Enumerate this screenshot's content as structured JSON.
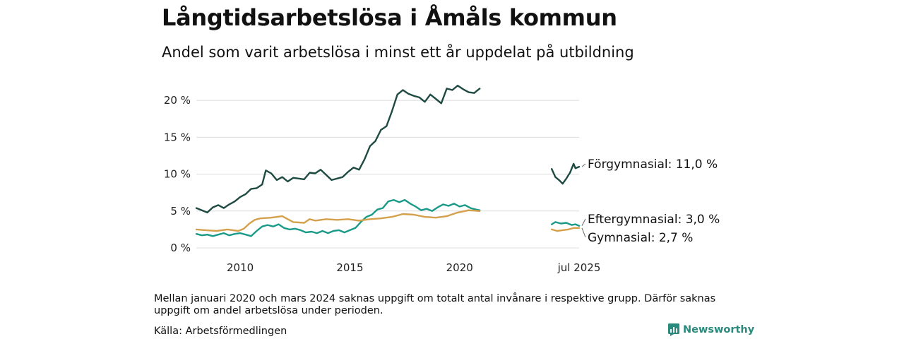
{
  "title": "Långtidsarbetslösa i Åmåls kommun",
  "subtitle": "Andel som varit arbetslösa i minst ett år uppdelat på utbildning",
  "footnote": "Mellan januari 2020 och mars 2024 saknas uppgift om totalt antal invånare i respektive grupp. Därför saknas uppgift om andel arbetslösa under perioden.",
  "source": "Källa: Arbetsförmedlingen",
  "brand": "Newsworthy",
  "colors": {
    "forgymnasial": "#1e4a42",
    "eftergymnasial": "#1a9a88",
    "gymnasial": "#d4a04c",
    "grid": "#dcdcdc"
  },
  "chart_data": {
    "type": "line",
    "ylim": [
      0,
      22.5
    ],
    "ytick_values": [
      0,
      5,
      10,
      15,
      20
    ],
    "yticks": [
      "0 %",
      "5 %",
      "10 %",
      "15 %",
      "20 %"
    ],
    "xticks": [
      {
        "label": "2010",
        "value": "2010-01"
      },
      {
        "label": "2015",
        "value": "2015-01"
      },
      {
        "label": "2020",
        "value": "2020-01"
      },
      {
        "label": "jul 2025",
        "value": "2025-07"
      }
    ],
    "segments": [
      {
        "from": "2008-01",
        "to": "2020-12"
      },
      {
        "from": "2024-04",
        "to": "2025-07"
      }
    ],
    "series": [
      {
        "key": "forgymnasial",
        "label": "Förgymnasial: 11,0 %",
        "points": [
          [
            "2008-01",
            5.4
          ],
          [
            "2008-04",
            5.1
          ],
          [
            "2008-07",
            4.8
          ],
          [
            "2008-10",
            5.5
          ],
          [
            "2009-01",
            5.8
          ],
          [
            "2009-04",
            5.4
          ],
          [
            "2009-07",
            5.9
          ],
          [
            "2009-10",
            6.3
          ],
          [
            "2010-01",
            6.9
          ],
          [
            "2010-04",
            7.3
          ],
          [
            "2010-07",
            8.0
          ],
          [
            "2010-10",
            8.1
          ],
          [
            "2011-01",
            8.6
          ],
          [
            "2011-03",
            10.5
          ],
          [
            "2011-06",
            10.1
          ],
          [
            "2011-09",
            9.2
          ],
          [
            "2011-12",
            9.6
          ],
          [
            "2012-03",
            9.0
          ],
          [
            "2012-06",
            9.5
          ],
          [
            "2012-09",
            9.4
          ],
          [
            "2012-12",
            9.3
          ],
          [
            "2013-03",
            10.2
          ],
          [
            "2013-06",
            10.1
          ],
          [
            "2013-09",
            10.6
          ],
          [
            "2013-12",
            9.9
          ],
          [
            "2014-03",
            9.2
          ],
          [
            "2014-06",
            9.4
          ],
          [
            "2014-09",
            9.6
          ],
          [
            "2014-12",
            10.3
          ],
          [
            "2015-03",
            10.9
          ],
          [
            "2015-06",
            10.6
          ],
          [
            "2015-09",
            12.0
          ],
          [
            "2015-12",
            13.8
          ],
          [
            "2016-03",
            14.5
          ],
          [
            "2016-06",
            16.0
          ],
          [
            "2016-09",
            16.5
          ],
          [
            "2016-12",
            18.5
          ],
          [
            "2017-03",
            20.8
          ],
          [
            "2017-06",
            21.4
          ],
          [
            "2017-09",
            20.9
          ],
          [
            "2017-12",
            20.6
          ],
          [
            "2018-03",
            20.4
          ],
          [
            "2018-06",
            19.8
          ],
          [
            "2018-09",
            20.8
          ],
          [
            "2018-12",
            20.2
          ],
          [
            "2019-03",
            19.6
          ],
          [
            "2019-06",
            21.6
          ],
          [
            "2019-09",
            21.4
          ],
          [
            "2019-12",
            22.0
          ],
          [
            "2020-03",
            21.5
          ],
          [
            "2020-06",
            21.1
          ],
          [
            "2020-09",
            21.0
          ],
          [
            "2020-12",
            21.6
          ],
          [
            "2024-04",
            10.7
          ],
          [
            "2024-06",
            9.6
          ],
          [
            "2024-08",
            9.2
          ],
          [
            "2024-10",
            8.7
          ],
          [
            "2024-12",
            9.4
          ],
          [
            "2025-02",
            10.2
          ],
          [
            "2025-04",
            11.4
          ],
          [
            "2025-05",
            10.8
          ],
          [
            "2025-07",
            11.0
          ]
        ]
      },
      {
        "key": "eftergymnasial",
        "label": "Eftergymnasial:  3,0 %",
        "points": [
          [
            "2008-01",
            1.9
          ],
          [
            "2008-04",
            1.7
          ],
          [
            "2008-07",
            1.8
          ],
          [
            "2008-10",
            1.6
          ],
          [
            "2009-01",
            1.8
          ],
          [
            "2009-04",
            2.0
          ],
          [
            "2009-07",
            1.7
          ],
          [
            "2009-10",
            1.9
          ],
          [
            "2010-01",
            2.0
          ],
          [
            "2010-04",
            1.8
          ],
          [
            "2010-07",
            1.6
          ],
          [
            "2010-10",
            2.3
          ],
          [
            "2011-01",
            2.9
          ],
          [
            "2011-04",
            3.1
          ],
          [
            "2011-07",
            2.9
          ],
          [
            "2011-10",
            3.2
          ],
          [
            "2012-01",
            2.7
          ],
          [
            "2012-04",
            2.5
          ],
          [
            "2012-07",
            2.6
          ],
          [
            "2012-10",
            2.4
          ],
          [
            "2013-01",
            2.1
          ],
          [
            "2013-04",
            2.2
          ],
          [
            "2013-07",
            2.0
          ],
          [
            "2013-10",
            2.3
          ],
          [
            "2014-01",
            2.0
          ],
          [
            "2014-04",
            2.3
          ],
          [
            "2014-07",
            2.4
          ],
          [
            "2014-10",
            2.1
          ],
          [
            "2015-01",
            2.4
          ],
          [
            "2015-04",
            2.7
          ],
          [
            "2015-07",
            3.5
          ],
          [
            "2015-10",
            4.2
          ],
          [
            "2016-01",
            4.5
          ],
          [
            "2016-04",
            5.2
          ],
          [
            "2016-07",
            5.4
          ],
          [
            "2016-10",
            6.3
          ],
          [
            "2017-01",
            6.5
          ],
          [
            "2017-04",
            6.2
          ],
          [
            "2017-07",
            6.5
          ],
          [
            "2017-10",
            6.0
          ],
          [
            "2018-01",
            5.6
          ],
          [
            "2018-04",
            5.1
          ],
          [
            "2018-07",
            5.3
          ],
          [
            "2018-10",
            5.0
          ],
          [
            "2019-01",
            5.5
          ],
          [
            "2019-04",
            5.9
          ],
          [
            "2019-07",
            5.7
          ],
          [
            "2019-10",
            6.0
          ],
          [
            "2020-01",
            5.6
          ],
          [
            "2020-04",
            5.8
          ],
          [
            "2020-07",
            5.4
          ],
          [
            "2020-10",
            5.2
          ],
          [
            "2020-12",
            5.1
          ],
          [
            "2024-04",
            3.2
          ],
          [
            "2024-06",
            3.5
          ],
          [
            "2024-09",
            3.3
          ],
          [
            "2024-12",
            3.4
          ],
          [
            "2025-03",
            3.1
          ],
          [
            "2025-05",
            3.2
          ],
          [
            "2025-07",
            3.0
          ]
        ]
      },
      {
        "key": "gymnasial",
        "label": "Gymnasial:  2,7 %",
        "points": [
          [
            "2008-01",
            2.5
          ],
          [
            "2008-06",
            2.4
          ],
          [
            "2008-12",
            2.3
          ],
          [
            "2009-06",
            2.5
          ],
          [
            "2009-12",
            2.3
          ],
          [
            "2010-03",
            2.6
          ],
          [
            "2010-06",
            3.3
          ],
          [
            "2010-09",
            3.8
          ],
          [
            "2010-12",
            4.0
          ],
          [
            "2011-06",
            4.1
          ],
          [
            "2011-12",
            4.3
          ],
          [
            "2012-03",
            3.9
          ],
          [
            "2012-06",
            3.5
          ],
          [
            "2012-12",
            3.4
          ],
          [
            "2013-03",
            3.9
          ],
          [
            "2013-06",
            3.7
          ],
          [
            "2013-12",
            3.9
          ],
          [
            "2014-06",
            3.8
          ],
          [
            "2014-12",
            3.9
          ],
          [
            "2015-06",
            3.7
          ],
          [
            "2015-12",
            3.9
          ],
          [
            "2016-06",
            4.0
          ],
          [
            "2016-12",
            4.2
          ],
          [
            "2017-06",
            4.6
          ],
          [
            "2017-12",
            4.5
          ],
          [
            "2018-06",
            4.2
          ],
          [
            "2018-12",
            4.1
          ],
          [
            "2019-06",
            4.3
          ],
          [
            "2019-12",
            4.8
          ],
          [
            "2020-06",
            5.1
          ],
          [
            "2020-12",
            5.0
          ],
          [
            "2024-04",
            2.5
          ],
          [
            "2024-07",
            2.3
          ],
          [
            "2024-10",
            2.4
          ],
          [
            "2025-01",
            2.5
          ],
          [
            "2025-04",
            2.7
          ],
          [
            "2025-07",
            2.7
          ]
        ]
      }
    ]
  }
}
